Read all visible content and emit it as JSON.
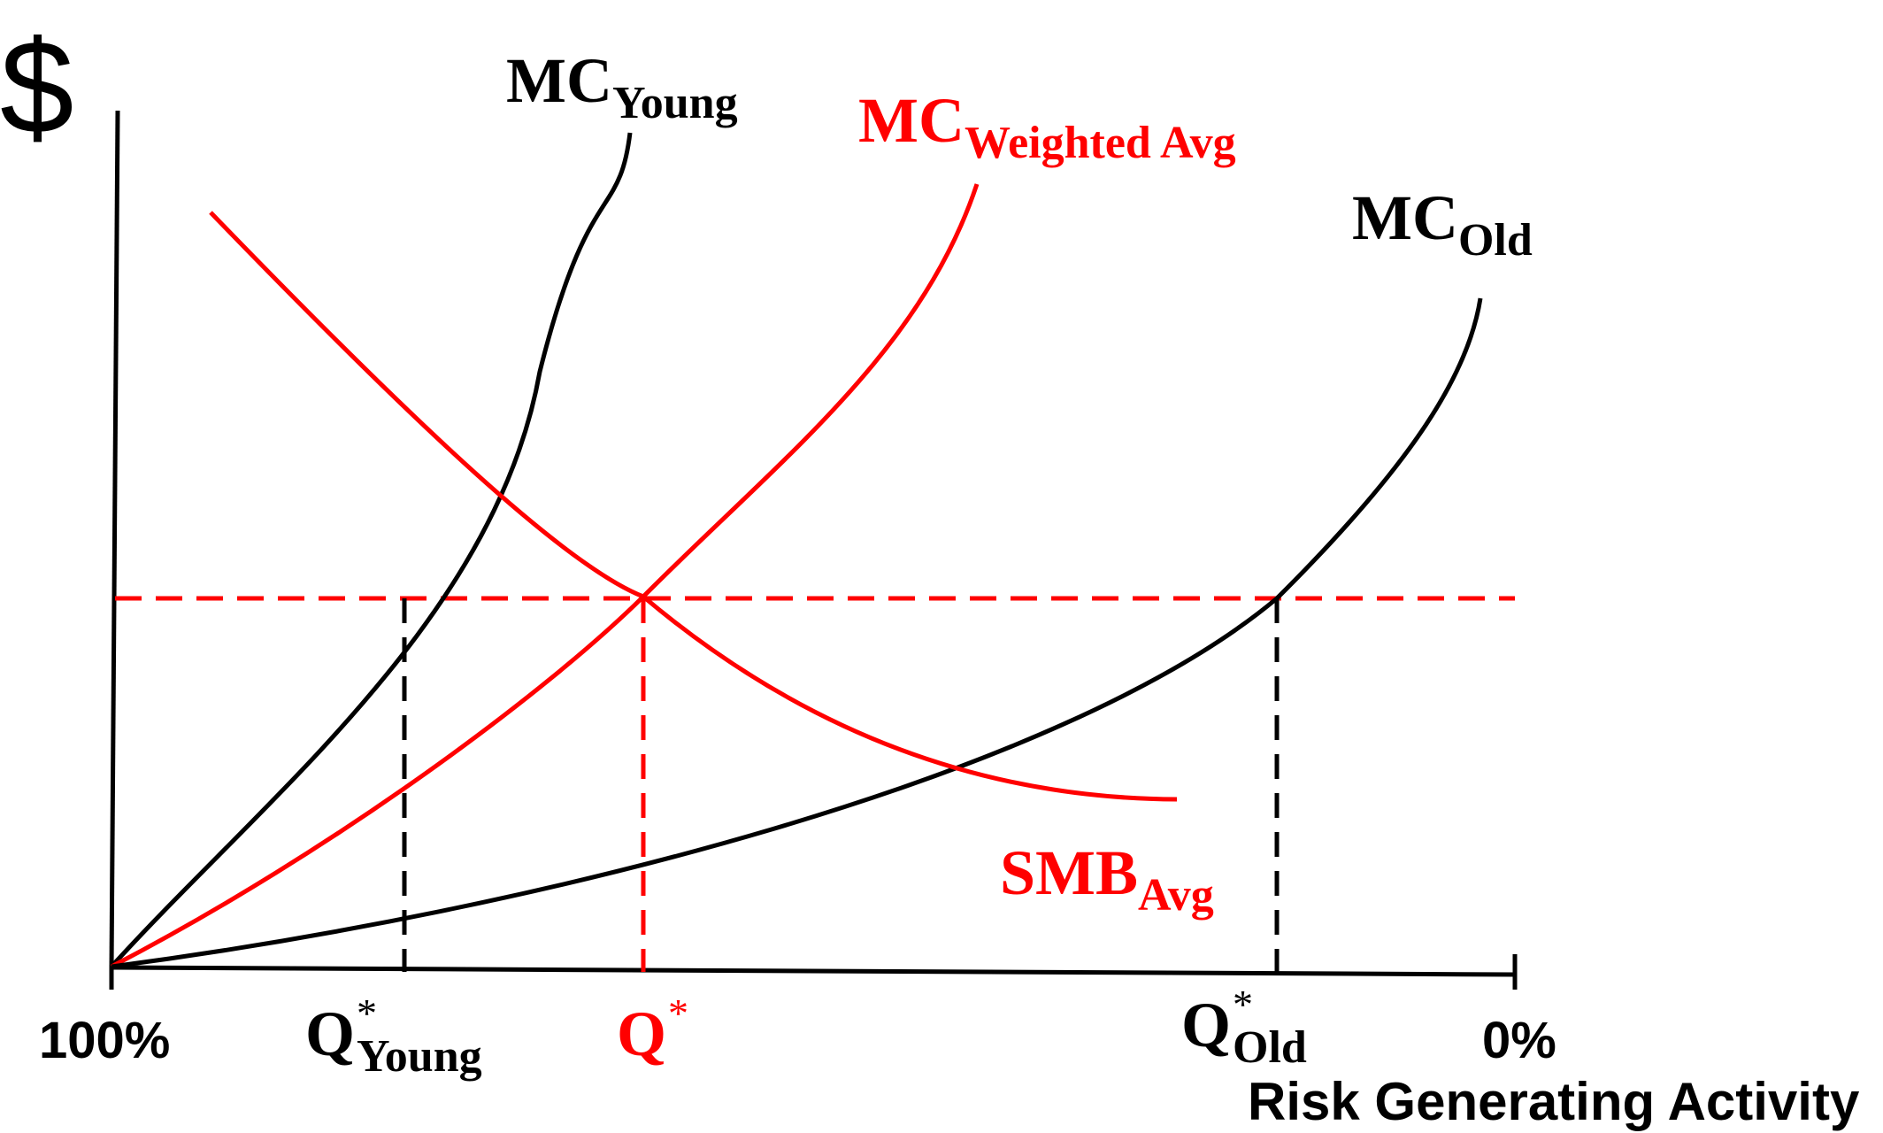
{
  "colors": {
    "black": "#000000",
    "red": "#ff0000",
    "background": "#ffffff"
  },
  "y_axis_symbol": "$",
  "x_axis": {
    "label": "Risk Generating Activity",
    "left_tick": "100%",
    "right_tick": "0%"
  },
  "curves": {
    "mc_young": {
      "main": "MC",
      "sub": "Young"
    },
    "mc_weighted": {
      "main": "MC",
      "sub": "Weighted Avg"
    },
    "mc_old": {
      "main": "MC",
      "sub": "Old"
    },
    "smb_avg": {
      "main": "SMB",
      "sub": "Avg"
    }
  },
  "quantities": {
    "q_young": {
      "main": "Q",
      "star": "*",
      "sub": "Young"
    },
    "q_star": {
      "main": "Q",
      "star": "*"
    },
    "q_old": {
      "main": "Q",
      "star": "*",
      "sub": "Old"
    }
  }
}
